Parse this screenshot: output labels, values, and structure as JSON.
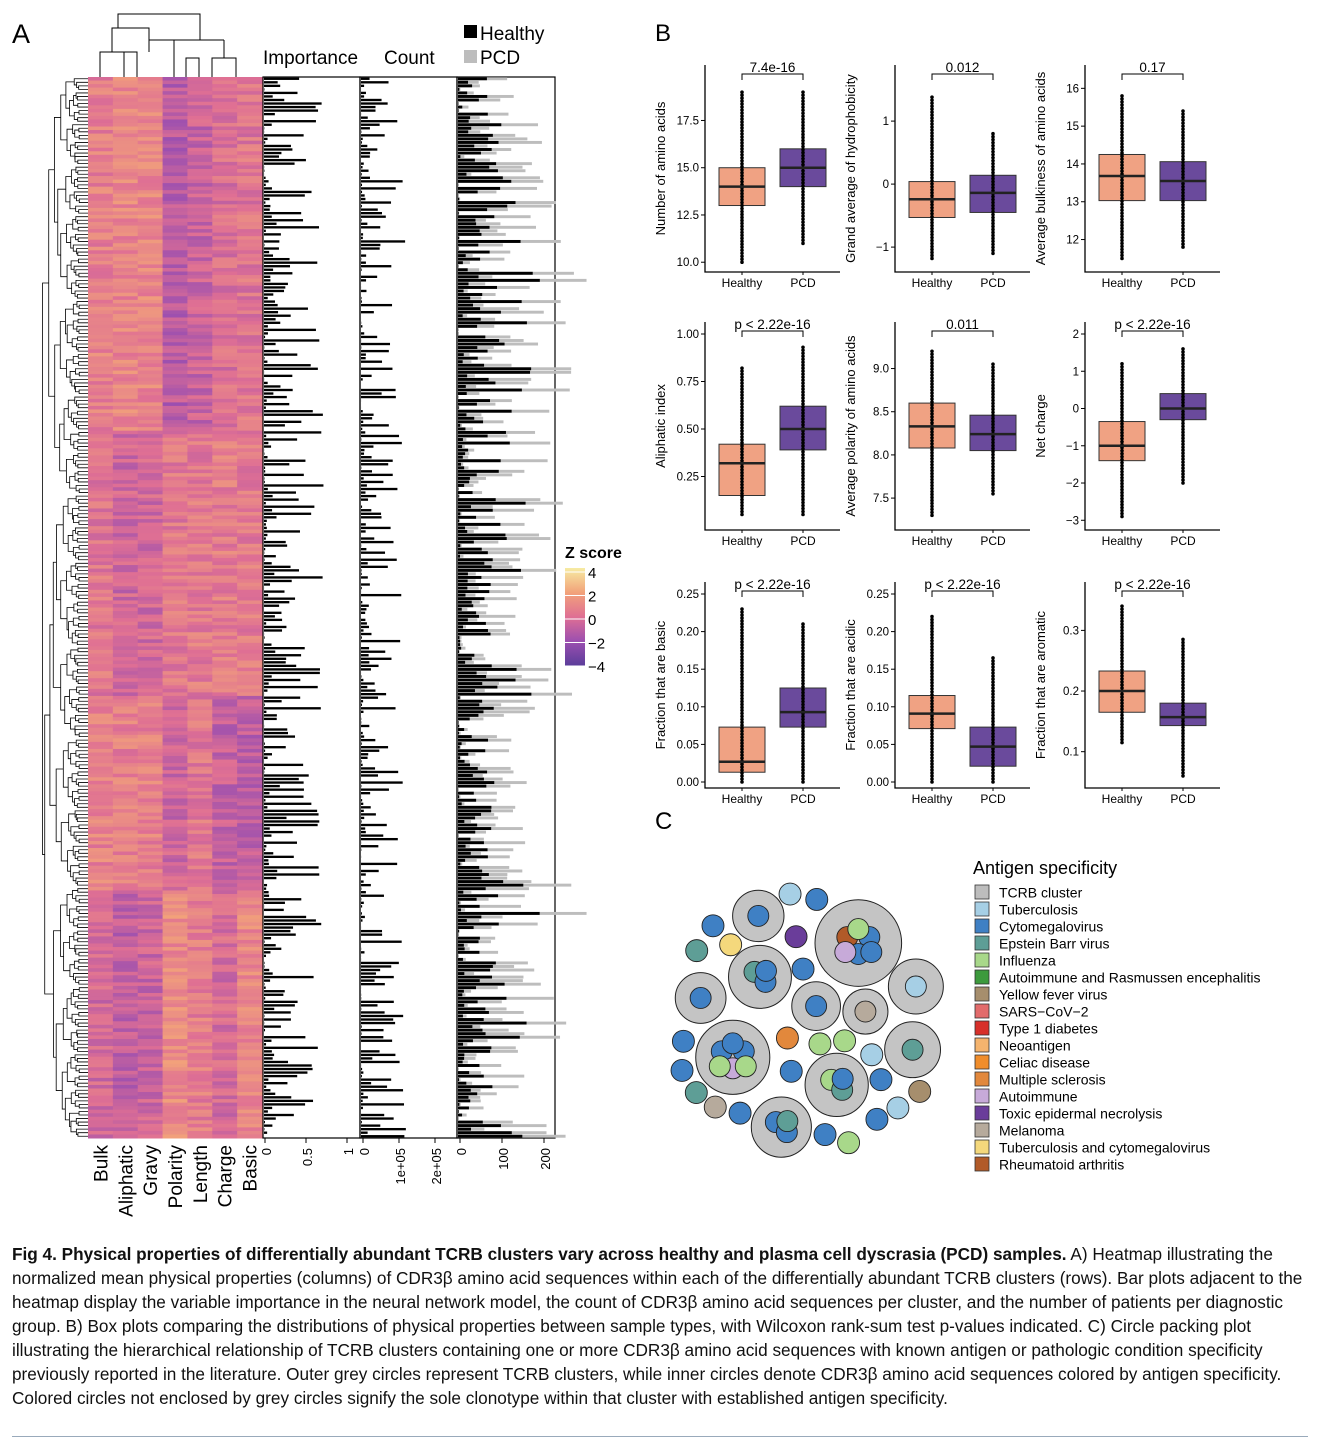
{
  "panel_labels": {
    "a": "A",
    "b": "B",
    "c": "C"
  },
  "panel_a": {
    "heatmap_columns": [
      "Bulk",
      "Aliphatic",
      "Gravy",
      "Polarity",
      "Length",
      "Charge",
      "Basic"
    ],
    "bar_titles": {
      "importance": "Importance",
      "count": "Count"
    },
    "importance_ticks": [
      "0",
      "0.5",
      "1"
    ],
    "count_ticks": [
      "0",
      "1e+05",
      "2e+05"
    ],
    "patients_ticks": [
      "0",
      "100",
      "200"
    ],
    "group_legend": [
      {
        "label": "Healthy",
        "color": "#000000"
      },
      {
        "label": "PCD",
        "color": "#bdbdbd"
      }
    ],
    "zscore_legend": {
      "title": "Z score",
      "ticks": [
        "4",
        "2",
        "0",
        "−2",
        "−4"
      ],
      "range": [
        -4,
        4
      ]
    },
    "colorscale": [
      "#5a3d9a",
      "#9b4fb0",
      "#df6f94",
      "#f2a27a",
      "#f6eba3"
    ]
  },
  "chart_data": [
    {
      "type": "box",
      "ylabel": "Number of amino acids",
      "categories": [
        "Healthy",
        "PCD"
      ],
      "pvalue": "7.4e-16",
      "ylim": [
        9.8,
        19.8
      ],
      "ticks": [
        10.0,
        12.5,
        15.0,
        17.5
      ],
      "tick_labels": [
        "10.0",
        "12.5",
        "15.0",
        "17.5"
      ],
      "boxes": [
        {
          "min": 10,
          "q1": 13,
          "median": 14,
          "q3": 15,
          "max": 19
        },
        {
          "min": 11,
          "q1": 14,
          "median": 15,
          "q3": 16,
          "max": 19
        }
      ]
    },
    {
      "type": "box",
      "ylabel": "Grand average of hydrophobicity",
      "categories": [
        "Healthy",
        "PCD"
      ],
      "pvalue": "0.012",
      "ylim": [
        -1.3,
        1.7
      ],
      "ticks": [
        -1,
        0,
        1
      ],
      "tick_labels": [
        "−1",
        "0",
        "1"
      ],
      "boxes": [
        {
          "min": -1.18,
          "q1": -0.53,
          "median": -0.24,
          "q3": 0.04,
          "max": 1.38
        },
        {
          "min": -1.1,
          "q1": -0.45,
          "median": -0.14,
          "q3": 0.14,
          "max": 0.8
        }
      ]
    },
    {
      "type": "box",
      "ylabel": "Average bulkiness of amino acids",
      "categories": [
        "Healthy",
        "PCD"
      ],
      "pvalue": "0.17",
      "ylim": [
        11.3,
        16.3
      ],
      "ticks": [
        12,
        13,
        14,
        15,
        16
      ],
      "tick_labels": [
        "12",
        "13",
        "14",
        "15",
        "16"
      ],
      "boxes": [
        {
          "min": 11.5,
          "q1": 13.03,
          "median": 13.68,
          "q3": 14.25,
          "max": 15.8
        },
        {
          "min": 11.8,
          "q1": 13.03,
          "median": 13.55,
          "q3": 14.06,
          "max": 15.4
        }
      ]
    },
    {
      "type": "box",
      "ylabel": "Aliphatic index",
      "categories": [
        "Healthy",
        "PCD"
      ],
      "pvalue": "p < 2.22e-16",
      "ylim": [
        0.0,
        1.0
      ],
      "ticks": [
        0.25,
        0.5,
        0.75,
        1.0
      ],
      "tick_labels": [
        "0.25",
        "0.50",
        "0.75",
        "1.00"
      ],
      "boxes": [
        {
          "min": 0.05,
          "q1": 0.15,
          "median": 0.32,
          "q3": 0.42,
          "max": 0.82
        },
        {
          "min": 0.05,
          "q1": 0.39,
          "median": 0.5,
          "q3": 0.62,
          "max": 0.93
        }
      ]
    },
    {
      "type": "box",
      "ylabel": "Average polarity of amino acids",
      "categories": [
        "Healthy",
        "PCD"
      ],
      "pvalue": "0.011",
      "ylim": [
        7.2,
        9.4
      ],
      "ticks": [
        7.5,
        8.0,
        8.5,
        9.0
      ],
      "tick_labels": [
        "7.5",
        "8.0",
        "8.5",
        "9.0"
      ],
      "boxes": [
        {
          "min": 7.3,
          "q1": 8.08,
          "median": 8.33,
          "q3": 8.6,
          "max": 9.2
        },
        {
          "min": 7.55,
          "q1": 8.05,
          "median": 8.24,
          "q3": 8.46,
          "max": 9.05
        }
      ]
    },
    {
      "type": "box",
      "ylabel": "Net charge",
      "categories": [
        "Healthy",
        "PCD"
      ],
      "pvalue": "p < 2.22e-16",
      "ylim": [
        -3.1,
        2.0
      ],
      "ticks": [
        -3,
        -2,
        -1,
        0,
        1,
        2
      ],
      "tick_labels": [
        "−3",
        "−2",
        "−1",
        "0",
        "1",
        "2"
      ],
      "boxes": [
        {
          "min": -2.9,
          "q1": -1.4,
          "median": -1.0,
          "q3": -0.35,
          "max": 1.2
        },
        {
          "min": -2.0,
          "q1": -0.3,
          "median": 0.0,
          "q3": 0.4,
          "max": 1.6
        }
      ]
    },
    {
      "type": "box",
      "ylabel": "Fraction that are basic",
      "categories": [
        "Healthy",
        "PCD"
      ],
      "pvalue": "p < 2.22e-16",
      "ylim": [
        0,
        0.25
      ],
      "ticks": [
        0,
        0.05,
        0.1,
        0.15,
        0.2,
        0.25
      ],
      "tick_labels": [
        "0.00",
        "0.05",
        "0.10",
        "0.15",
        "0.20",
        "0.25"
      ],
      "boxes": [
        {
          "min": 0,
          "q1": 0.013,
          "median": 0.027,
          "q3": 0.073,
          "max": 0.23
        },
        {
          "min": 0,
          "q1": 0.073,
          "median": 0.093,
          "q3": 0.125,
          "max": 0.21
        }
      ]
    },
    {
      "type": "box",
      "ylabel": "Fraction that are acidic",
      "categories": [
        "Healthy",
        "PCD"
      ],
      "pvalue": "p < 2.22e-16",
      "ylim": [
        0,
        0.25
      ],
      "ticks": [
        0,
        0.05,
        0.1,
        0.15,
        0.2,
        0.25
      ],
      "tick_labels": [
        "0.00",
        "0.05",
        "0.10",
        "0.15",
        "0.20",
        "0.25"
      ],
      "boxes": [
        {
          "min": 0,
          "q1": 0.071,
          "median": 0.091,
          "q3": 0.115,
          "max": 0.22
        },
        {
          "min": 0,
          "q1": 0.021,
          "median": 0.047,
          "q3": 0.073,
          "max": 0.165
        }
      ]
    },
    {
      "type": "box",
      "ylabel": "Fraction that are aromatic",
      "categories": [
        "Healthy",
        "PCD"
      ],
      "pvalue": "p < 2.22e-16",
      "ylim": [
        0.05,
        0.36
      ],
      "ticks": [
        0.1,
        0.2,
        0.3
      ],
      "tick_labels": [
        "0.1",
        "0.2",
        "0.3"
      ],
      "boxes": [
        {
          "min": 0.115,
          "q1": 0.165,
          "median": 0.2,
          "q3": 0.233,
          "max": 0.34
        },
        {
          "min": 0.06,
          "q1": 0.143,
          "median": 0.157,
          "q3": 0.18,
          "max": 0.285
        }
      ]
    }
  ],
  "box_colors": {
    "Healthy": "#f0a283",
    "PCD": "#6a4a9c"
  },
  "panel_c": {
    "legend_title": "Antigen specificity",
    "items": [
      {
        "label": "TCRB cluster",
        "color": "#bdbdbd"
      },
      {
        "label": "Tuberculosis",
        "color": "#a6cfe5"
      },
      {
        "label": "Cytomegalovirus",
        "color": "#3f80c4"
      },
      {
        "label": "Epstein Barr virus",
        "color": "#5e9e96"
      },
      {
        "label": "Influenza",
        "color": "#a8d88a"
      },
      {
        "label": "Autoimmune and Rasmussen encephalitis",
        "color": "#3d9a3d"
      },
      {
        "label": "Yellow fever virus",
        "color": "#a68e6d"
      },
      {
        "label": "SARS−CoV−2",
        "color": "#e26b6b"
      },
      {
        "label": "Type 1 diabetes",
        "color": "#d7302a"
      },
      {
        "label": "Neoantigen",
        "color": "#f5b46e"
      },
      {
        "label": "Celiac disease",
        "color": "#f08d2b"
      },
      {
        "label": "Multiple sclerosis",
        "color": "#e2883c"
      },
      {
        "label": "Autoimmune",
        "color": "#c7aad9"
      },
      {
        "label": "Toxic epidermal necrolysis",
        "color": "#6a3d9a"
      },
      {
        "label": "Melanoma",
        "color": "#b6aa9c"
      },
      {
        "label": "Tuberculosis and cytomegalovirus",
        "color": "#f4d87c"
      },
      {
        "label": "Rheumatoid arthritis",
        "color": "#b15a28"
      }
    ]
  },
  "caption": {
    "title": "Fig 4.  Physical properties of differentially abundant TCRB clusters vary across healthy and plasma cell dyscrasia (PCD) samples.",
    "body": " A) Heatmap illustrating the normalized mean physical properties (columns) of CDR3β amino acid sequences within each of the differentially abundant TCRB clusters (rows). Bar plots adjacent to the heatmap display the variable importance in the neural network model, the count of CDR3β amino acid sequences per cluster, and the number of patients per diagnostic group. B) Box plots comparing the distributions of physical properties between sample types, with Wilcoxon rank-sum test p-values indicated. C) Circle packing plot illustrating the hierarchical relationship of TCRB clusters containing one or more CDR3β amino acid sequences with known antigen or pathologic condition specificity previously reported in the literature. Outer grey circles represent TCRB clusters, while inner circles denote CDR3β amino acid sequences colored by antigen specificity. Colored circles not enclosed by grey circles signify the sole clonotype within that cluster with established antigen specificity."
  }
}
